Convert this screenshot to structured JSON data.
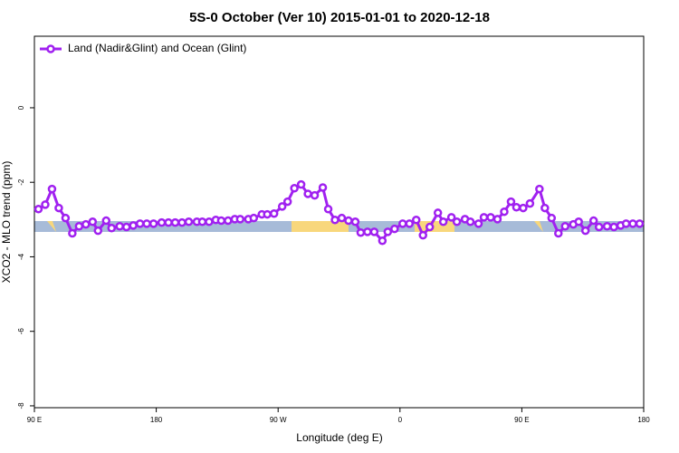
{
  "chart_data": {
    "type": "line",
    "title": "5S-0 October (Ver 10)   2015-01-01 to 2020-12-18",
    "xlabel": "Longitude (deg E)",
    "ylabel": "XCO2 - MLO trend (ppm)",
    "xlim": [
      90,
      540
    ],
    "ylim": [
      -8.05,
      1.92
    ],
    "xticks": [
      {
        "value": 90,
        "label": "90 E"
      },
      180,
      {
        "value": 270,
        "label": "90 W"
      },
      {
        "value": 360,
        "label": "0"
      },
      {
        "value": 450,
        "label": "90 E"
      },
      {
        "value": 540,
        "label": "180"
      }
    ],
    "yticks": [
      0,
      -2,
      -4,
      -6,
      -8
    ],
    "legend": "top-left",
    "series": [
      {
        "name": "Land (Nadir&Glint) and Ocean (Glint)",
        "color": "#a020f0",
        "x": [
          93,
          98,
          103,
          108,
          113,
          118,
          123,
          128,
          133,
          137,
          143,
          147,
          153,
          158,
          163,
          168,
          173,
          178,
          184,
          189,
          194,
          199,
          204,
          210,
          214,
          219,
          224,
          228,
          233,
          238,
          242,
          248,
          252,
          258,
          262,
          267,
          273,
          277,
          282,
          287,
          292,
          297,
          303,
          307,
          312,
          317,
          322,
          327,
          331,
          336,
          341,
          347,
          351,
          356,
          362,
          367,
          372,
          377,
          382,
          388,
          392,
          398,
          402,
          408,
          412,
          418,
          422,
          427,
          432,
          437,
          442,
          446,
          451,
          456,
          463,
          467,
          472,
          477,
          482,
          488,
          492,
          497,
          503,
          507,
          513,
          518,
          523,
          527,
          532,
          537
        ],
        "values": [
          -2.72,
          -2.6,
          -2.18,
          -2.69,
          -2.96,
          -3.37,
          -3.18,
          -3.13,
          -3.06,
          -3.3,
          -3.03,
          -3.23,
          -3.18,
          -3.2,
          -3.16,
          -3.11,
          -3.11,
          -3.11,
          -3.08,
          -3.08,
          -3.08,
          -3.08,
          -3.06,
          -3.06,
          -3.06,
          -3.06,
          -3.01,
          -3.03,
          -3.03,
          -2.99,
          -2.99,
          -2.99,
          -2.96,
          -2.86,
          -2.86,
          -2.84,
          -2.65,
          -2.52,
          -2.16,
          -2.06,
          -2.31,
          -2.35,
          -2.14,
          -2.72,
          -3.01,
          -2.96,
          -3.03,
          -3.06,
          -3.35,
          -3.33,
          -3.33,
          -3.57,
          -3.33,
          -3.25,
          -3.11,
          -3.11,
          -3.01,
          -3.42,
          -3.2,
          -2.82,
          -3.06,
          -2.94,
          -3.06,
          -2.99,
          -3.06,
          -3.11,
          -2.94,
          -2.94,
          -2.99,
          -2.79,
          -2.52,
          -2.67,
          -2.69,
          -2.57,
          -2.18,
          -2.69,
          -2.96,
          -3.37,
          -3.18,
          -3.13,
          -3.06,
          -3.3,
          -3.03,
          -3.2,
          -3.18,
          -3.2,
          -3.16,
          -3.11,
          -3.11,
          -3.11
        ]
      }
    ]
  }
}
